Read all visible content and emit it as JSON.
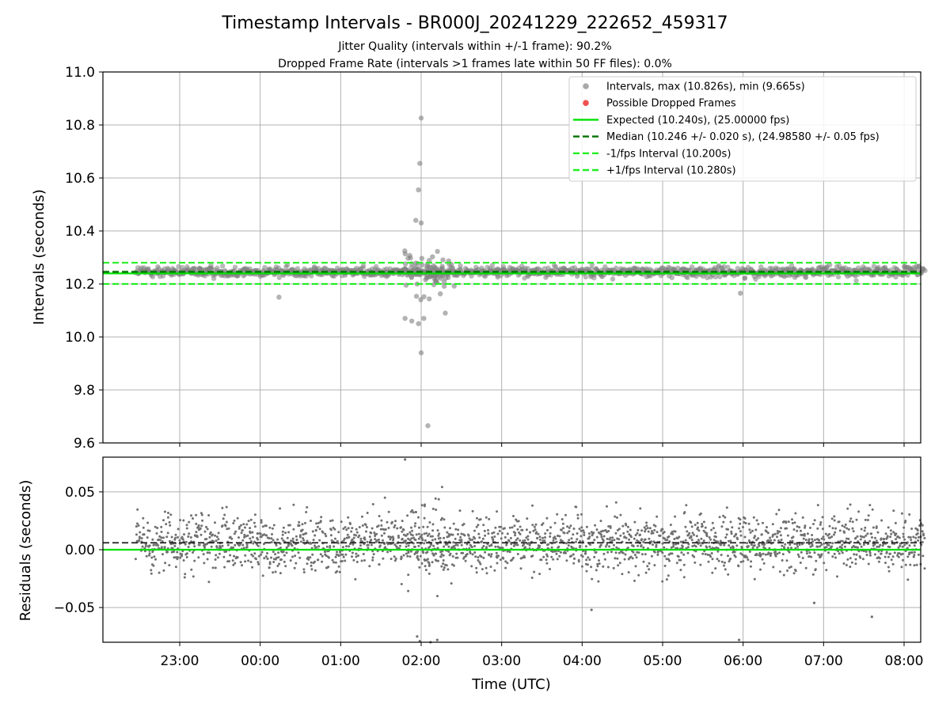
{
  "colors": {
    "intervals": "#808080",
    "dropped": "#f05050",
    "expected": "#00e000",
    "median": "#007000",
    "fps_band": "#22ee22",
    "grid": "#b0b0b0"
  },
  "chart_data": [
    {
      "type": "scatter",
      "title": "Timestamp Intervals - BR000J_20241229_222652_459317",
      "subtitle_lines": [
        "Jitter Quality (intervals within +/-1 frame): 90.2%",
        "Dropped Frame Rate (intervals >1 frames late within 50 FF files): 0.0%"
      ],
      "xlabel": "",
      "ylabel": "Intervals (seconds)",
      "ylim": [
        9.6,
        11.0
      ],
      "yticks": [
        9.6,
        9.8,
        10.0,
        10.2,
        10.4,
        10.6,
        10.8,
        11.0
      ],
      "ytick_labels": [
        "9.6",
        "9.8",
        "10.0",
        "10.2",
        "10.4",
        "10.6",
        "10.8",
        "11.0"
      ],
      "grid": true,
      "legend_position": "upper-right",
      "legend": [
        {
          "label": "Intervals, max (10.826s), min (9.665s)",
          "kind": "dot",
          "color": "#a8a8a8"
        },
        {
          "label": "Possible Dropped Frames",
          "kind": "dot",
          "color": "#f05050"
        },
        {
          "label": "Expected (10.240s), (25.00000 fps)",
          "kind": "line",
          "color": "#00e000"
        },
        {
          "label": "Median (10.246 +/- 0.020 s), (24.98580 +/- 0.05 fps)",
          "kind": "dash",
          "color": "#007000"
        },
        {
          "label": "-1/fps Interval (10.200s)",
          "kind": "dash",
          "color": "#22ee22"
        },
        {
          "label": "+1/fps Interval (10.280s)",
          "kind": "dash",
          "color": "#22ee22"
        }
      ],
      "reference_lines": {
        "expected": 10.24,
        "median": 10.246,
        "minus_fps": 10.2,
        "plus_fps": 10.28
      },
      "max_interval": 10.826,
      "min_interval": 9.665,
      "notable_points": [
        [
          "02:00",
          10.826
        ],
        [
          "01:59",
          10.655
        ],
        [
          "01:58",
          10.555
        ],
        [
          "01:56",
          10.44
        ],
        [
          "02:00",
          10.43
        ],
        [
          "02:00",
          9.94
        ],
        [
          "02:05",
          9.665
        ],
        [
          "01:48",
          10.07
        ],
        [
          "01:53",
          10.06
        ],
        [
          "01:58",
          10.05
        ],
        [
          "02:02",
          10.07
        ],
        [
          "02:18",
          10.09
        ],
        [
          "00:14",
          10.15
        ],
        [
          "05:58",
          10.165
        ]
      ]
    },
    {
      "type": "scatter",
      "xlabel": "Time (UTC)",
      "ylabel": "Residuals (seconds)",
      "ylim": [
        -0.08,
        0.08
      ],
      "yticks": [
        -0.05,
        0.0,
        0.05
      ],
      "ytick_labels": [
        "−0.05",
        "0.00",
        "0.05"
      ],
      "x_range": [
        "22:27",
        "08:15"
      ],
      "xticks": [
        "23:00",
        "00:00",
        "01:00",
        "02:00",
        "03:00",
        "04:00",
        "05:00",
        "06:00",
        "07:00",
        "08:00"
      ],
      "grid": true,
      "reference_lines": {
        "zero": 0.0,
        "median_offset": 0.006
      },
      "residual_spread": 0.02,
      "outlier_points": [
        [
          "01:48",
          0.078
        ],
        [
          "01:57",
          -0.075
        ],
        [
          "01:59",
          -0.079
        ],
        [
          "02:07",
          -0.08
        ],
        [
          "02:12",
          -0.078
        ],
        [
          "04:07",
          -0.052
        ],
        [
          "05:57",
          -0.078
        ],
        [
          "06:53",
          -0.046
        ],
        [
          "07:36",
          -0.058
        ]
      ]
    }
  ]
}
